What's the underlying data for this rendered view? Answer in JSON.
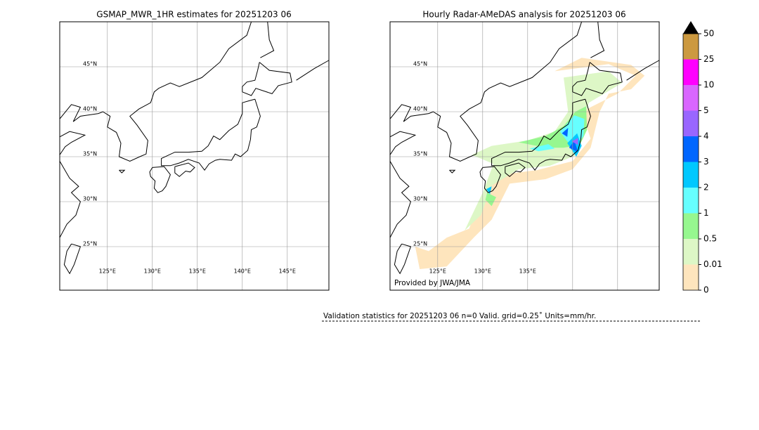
{
  "panels": [
    {
      "title": "GSMAP_MWR_1HR estimates for 20251203 06",
      "lat_labels": [
        "45°N",
        "40°N",
        "35°N",
        "30°N",
        "25°N"
      ],
      "lon_labels": [
        "125°E",
        "130°E",
        "135°E",
        "140°E",
        "145°E"
      ]
    },
    {
      "title": "Hourly Radar-AMeDAS analysis for 20251203 06",
      "lat_labels": [
        "45°N",
        "40°N",
        "35°N",
        "30°N",
        "25°N"
      ],
      "lon_labels": [
        "125°E",
        "130°E",
        "135°E"
      ],
      "credit": "Provided by JWA/JMA"
    }
  ],
  "colorbar": {
    "levels": [
      0,
      0.01,
      0.5,
      1,
      2,
      3,
      4,
      5,
      10,
      25,
      50
    ],
    "colors": [
      "#fee5bd",
      "#ddf7c6",
      "#96f78f",
      "#66ffff",
      "#00c8ff",
      "#0066ff",
      "#9966ff",
      "#d966ff",
      "#ff00ff",
      "#cc9940"
    ]
  },
  "validation": "Validation statistics for 20251203 06  n=0 Valid. grid=0.25˚ Units=mm/hr."
}
